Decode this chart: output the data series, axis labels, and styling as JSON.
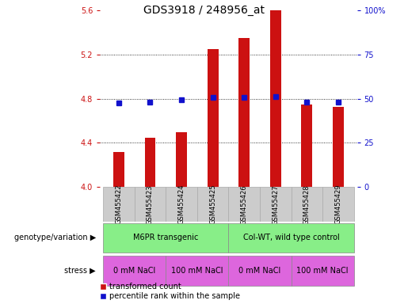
{
  "title": "GDS3918 / 248956_at",
  "samples": [
    "GSM455422",
    "GSM455423",
    "GSM455424",
    "GSM455425",
    "GSM455426",
    "GSM455427",
    "GSM455428",
    "GSM455429"
  ],
  "bar_values": [
    4.32,
    4.45,
    4.5,
    5.25,
    5.35,
    5.6,
    4.75,
    4.73
  ],
  "blue_values": [
    4.76,
    4.77,
    4.79,
    4.81,
    4.81,
    4.82,
    4.77,
    4.77
  ],
  "ylim_left": [
    4.0,
    5.6
  ],
  "ylim_right": [
    0,
    100
  ],
  "yticks_left": [
    4.0,
    4.4,
    4.8,
    5.2,
    5.6
  ],
  "yticks_right": [
    0,
    25,
    50,
    75,
    100
  ],
  "ytick_labels_right": [
    "0",
    "25",
    "50",
    "75",
    "100%"
  ],
  "hgrid_vals": [
    4.4,
    4.8,
    5.2
  ],
  "bar_color": "#cc1111",
  "blue_color": "#1111cc",
  "bar_bottom": 4.0,
  "bar_width": 0.35,
  "geno_groups": [
    {
      "label": "M6PR transgenic",
      "xmin": -0.5,
      "xmax": 3.5,
      "color": "#88ee88"
    },
    {
      "label": "Col-WT, wild type control",
      "xmin": 3.5,
      "xmax": 7.5,
      "color": "#88ee88"
    }
  ],
  "stress_groups": [
    {
      "label": "0 mM NaCl",
      "xmin": -0.5,
      "xmax": 1.5,
      "color": "#dd66dd"
    },
    {
      "label": "100 mM NaCl",
      "xmin": 1.5,
      "xmax": 3.5,
      "color": "#dd66dd"
    },
    {
      "label": "0 mM NaCl",
      "xmin": 3.5,
      "xmax": 5.5,
      "color": "#dd66dd"
    },
    {
      "label": "100 mM NaCl",
      "xmin": 5.5,
      "xmax": 7.5,
      "color": "#dd66dd"
    }
  ],
  "sample_box_color": "#cccccc",
  "sample_box_edge": "#aaaaaa",
  "left_tick_color": "#cc1111",
  "right_tick_color": "#1111cc",
  "legend_bar_label": "transformed count",
  "legend_blue_label": "percentile rank within the sample",
  "geno_label": "genotype/variation",
  "stress_label": "stress",
  "title_fontsize": 10,
  "tick_fontsize": 7,
  "sample_fontsize": 6,
  "row_fontsize": 7,
  "legend_fontsize": 7
}
